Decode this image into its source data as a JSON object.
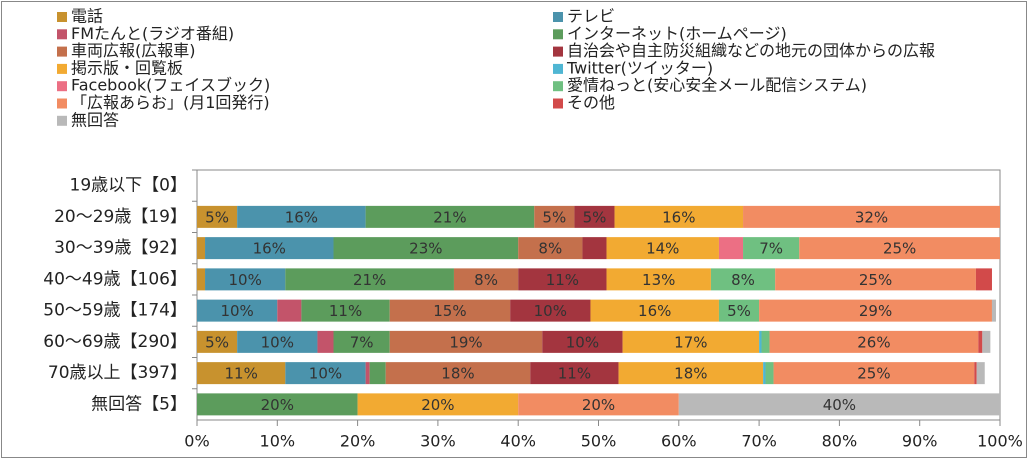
{
  "chart_data": {
    "type": "stacked_bar_horizontal",
    "categories": [
      "19歳以下【0】",
      "20～29歳【19】",
      "30～39歳【92】",
      "40～49歳【106】",
      "50～59歳【174】",
      "60～69歳【290】",
      "70歳以上【397】",
      "無回答【5】"
    ],
    "xlim": [
      0,
      100
    ],
    "xticks": [
      {
        "value": 0,
        "label": "0%"
      },
      {
        "value": 10,
        "label": "10%"
      },
      {
        "value": 20,
        "label": "20%"
      },
      {
        "value": 30,
        "label": "30%"
      },
      {
        "value": 40,
        "label": "40%"
      },
      {
        "value": 50,
        "label": "50%"
      },
      {
        "value": 60,
        "label": "60%"
      },
      {
        "value": 70,
        "label": "70%"
      },
      {
        "value": 80,
        "label": "80%"
      },
      {
        "value": 90,
        "label": "90%"
      },
      {
        "value": 100,
        "label": "100%"
      }
    ],
    "legend": "top",
    "series": [
      {
        "name": "電話",
        "color": "#c8922e",
        "values": [
          0,
          5,
          1,
          1,
          0,
          5,
          11,
          0
        ],
        "value_labels": [
          null,
          "5%",
          null,
          null,
          null,
          "5%",
          "11%",
          null
        ]
      },
      {
        "name": "テレビ",
        "color": "#4b93ac",
        "values": [
          0,
          16,
          16,
          10,
          10,
          10,
          10,
          0
        ],
        "value_labels": [
          null,
          "16%",
          "16%",
          "10%",
          "10%",
          "10%",
          "10%",
          null
        ]
      },
      {
        "name": "FMたんと(ラジオ番組)",
        "color": "#c3546a",
        "values": [
          0,
          0,
          0,
          0,
          3,
          2,
          0.5,
          0
        ],
        "value_labels": [
          null,
          null,
          null,
          null,
          null,
          null,
          null,
          null
        ]
      },
      {
        "name": "インターネット(ホームページ)",
        "color": "#5c9c5c",
        "values": [
          0,
          21,
          23,
          21,
          11,
          7,
          2,
          20
        ],
        "value_labels": [
          null,
          "21%",
          "23%",
          "21%",
          "11%",
          "7%",
          null,
          "20%"
        ]
      },
      {
        "name": "車両広報(広報車)",
        "color": "#c4704c",
        "values": [
          0,
          5,
          8,
          8,
          15,
          19,
          18,
          0
        ],
        "value_labels": [
          null,
          "5%",
          "8%",
          "8%",
          "15%",
          "19%",
          "18%",
          null
        ]
      },
      {
        "name": "自治会や自主防災組織などの地元の団体からの広報",
        "color": "#a3353f",
        "values": [
          0,
          5,
          3,
          11,
          10,
          10,
          11,
          0
        ],
        "value_labels": [
          null,
          "5%",
          null,
          "11%",
          "10%",
          "10%",
          "11%",
          null
        ]
      },
      {
        "name": "掲示版・回覧板",
        "color": "#f2aa32",
        "values": [
          0,
          16,
          14,
          13,
          16,
          17,
          18,
          20
        ],
        "value_labels": [
          null,
          "16%",
          "14%",
          "13%",
          "16%",
          "17%",
          "18%",
          "20%"
        ]
      },
      {
        "name": "Twitter(ツイッター)",
        "color": "#4fb6d3",
        "values": [
          0,
          0,
          0,
          0,
          0,
          0.3,
          0.3,
          0
        ],
        "value_labels": [
          null,
          null,
          null,
          null,
          null,
          null,
          null,
          null
        ]
      },
      {
        "name": "Facebook(フェイスブック)",
        "color": "#ec6f84",
        "values": [
          0,
          0,
          3,
          0,
          0,
          0,
          0,
          0
        ],
        "value_labels": [
          null,
          null,
          null,
          null,
          null,
          null,
          null,
          null
        ]
      },
      {
        "name": "愛情ねっと(安心安全メール配信システム)",
        "color": "#6fc081",
        "values": [
          0,
          0,
          7,
          8,
          5,
          1,
          1,
          0
        ],
        "value_labels": [
          null,
          null,
          "7%",
          "8%",
          "5%",
          null,
          null,
          null
        ]
      },
      {
        "name": "「広報あらお」(月1回発行)",
        "color": "#f28c62",
        "values": [
          0,
          32,
          25,
          25,
          29,
          26,
          25,
          20
        ],
        "value_labels": [
          null,
          "32%",
          "25%",
          "25%",
          "29%",
          "26%",
          "25%",
          "20%"
        ]
      },
      {
        "name": "その他",
        "color": "#d24a4a",
        "values": [
          0,
          0,
          0,
          2,
          0,
          0.5,
          0.3,
          0
        ],
        "value_labels": [
          null,
          null,
          null,
          null,
          null,
          null,
          null,
          null
        ]
      },
      {
        "name": "無回答",
        "color": "#b9b9b9",
        "values": [
          0,
          0,
          0,
          0,
          0.5,
          1,
          1,
          40
        ],
        "value_labels": [
          null,
          null,
          null,
          null,
          null,
          null,
          null,
          "40%"
        ]
      }
    ]
  }
}
